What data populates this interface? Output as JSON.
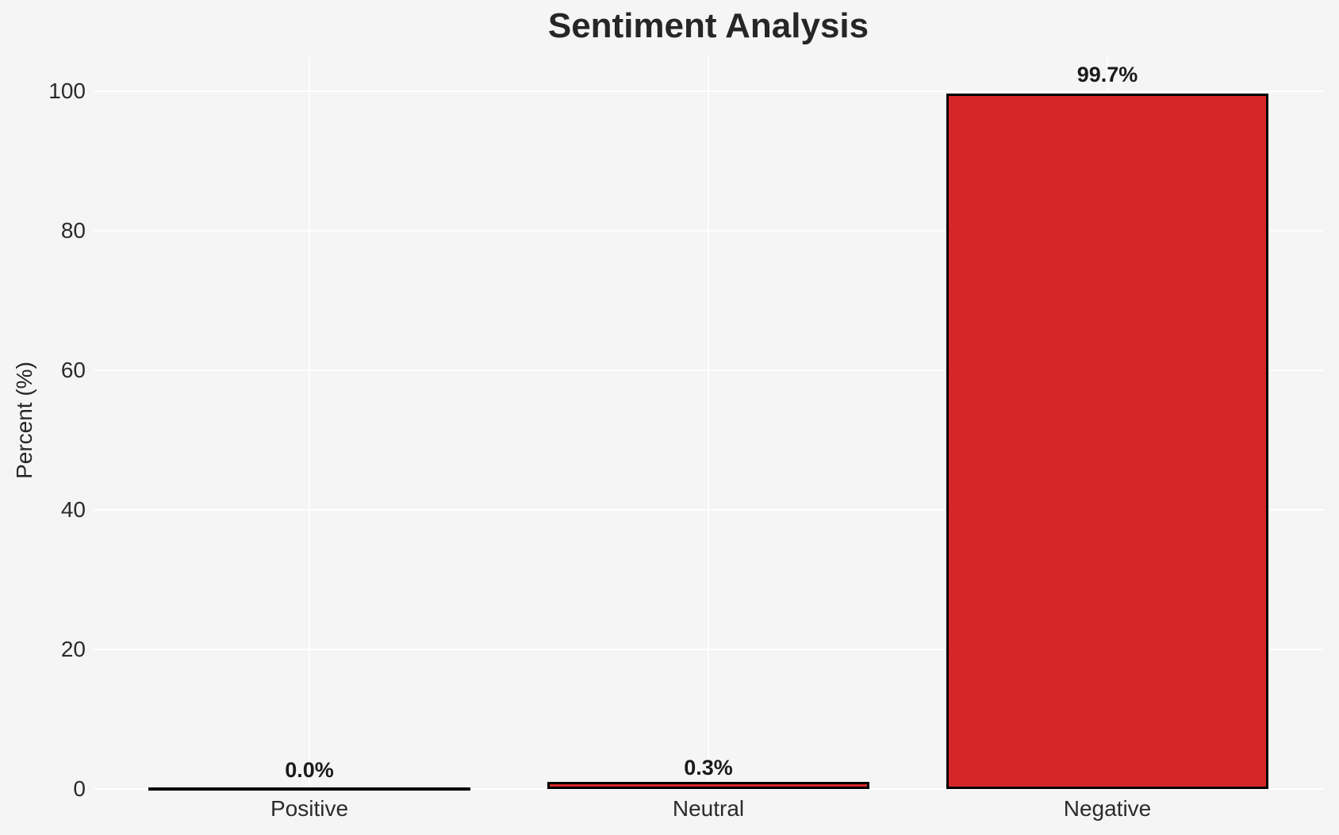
{
  "chart_data": {
    "type": "bar",
    "title": "Sentiment Analysis",
    "xlabel": "",
    "ylabel": "Percent (%)",
    "categories": [
      "Positive",
      "Neutral",
      "Negative"
    ],
    "values": [
      0.0,
      0.3,
      99.7
    ],
    "value_labels": [
      "0.0%",
      "0.3%",
      "99.7%"
    ],
    "yticks": [
      0,
      20,
      40,
      60,
      80,
      100
    ],
    "ylim": [
      0,
      105
    ],
    "grid": "both-x-and-y",
    "legend_position": "none",
    "colors": {
      "background": "#f5f5f6",
      "gridline": "#ffffff",
      "bar_fill": "#d62728",
      "bar_edge": "#000000",
      "text": "#2b2b2b"
    }
  }
}
